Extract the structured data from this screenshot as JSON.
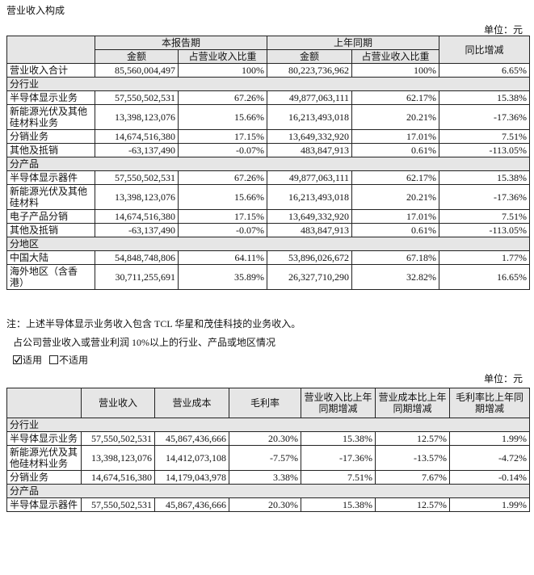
{
  "title": "营业收入构成",
  "unit1": "单位：元",
  "table1": {
    "header1": [
      "本报告期",
      "上年同期",
      "同比增减"
    ],
    "header2": [
      "金额",
      "占营业收入比重",
      "金额",
      "占营业收入比重"
    ],
    "rows": [
      [
        "营业收入合计",
        "85,560,004,497",
        "100%",
        "80,223,736,962",
        "100%",
        "6.65%"
      ],
      "分行业",
      [
        "半导体显示业务",
        "57,550,502,531",
        "67.26%",
        "49,877,063,111",
        "62.17%",
        "15.38%"
      ],
      [
        "新能源光伏及其他硅材料业务",
        "13,398,123,076",
        "15.66%",
        "16,213,493,018",
        "20.21%",
        "-17.36%"
      ],
      [
        "分销业务",
        "14,674,516,380",
        "17.15%",
        "13,649,332,920",
        "17.01%",
        "7.51%"
      ],
      [
        "其他及抵销",
        "-63,137,490",
        "-0.07%",
        "483,847,913",
        "0.61%",
        "-113.05%"
      ],
      "分产品",
      [
        "半导体显示器件",
        "57,550,502,531",
        "67.26%",
        "49,877,063,111",
        "62.17%",
        "15.38%"
      ],
      [
        "新能源光伏及其他硅材料",
        "13,398,123,076",
        "15.66%",
        "16,213,493,018",
        "20.21%",
        "-17.36%"
      ],
      [
        "电子产品分销",
        "14,674,516,380",
        "17.15%",
        "13,649,332,920",
        "17.01%",
        "7.51%"
      ],
      [
        "其他及抵销",
        "-63,137,490",
        "-0.07%",
        "483,847,913",
        "0.61%",
        "-113.05%"
      ],
      "分地区",
      [
        "中国大陆",
        "54,848,748,806",
        "64.11%",
        "53,896,026,672",
        "67.18%",
        "1.77%"
      ],
      [
        "海外地区（含香港）",
        "30,711,255,691",
        "35.89%",
        "26,327,710,290",
        "32.82%",
        "16.65%"
      ]
    ]
  },
  "note": "注：上述半导体显示业务收入包含 TCL 华星和茂佳科技的业务收入。",
  "paragraph": "占公司营业收入或营业利润 10%以上的行业、产品或地区情况",
  "options": [
    "适用",
    "不适用"
  ],
  "unit2": "单位：元",
  "table2": {
    "header": [
      "营业收入",
      "营业成本",
      "毛利率",
      "营业收入比上年同期增减",
      "营业成本比上年同期增减",
      "毛利率比上年同期增减"
    ],
    "rows": [
      "分行业",
      [
        "半导体显示业务",
        "57,550,502,531",
        "45,867,436,666",
        "20.30%",
        "15.38%",
        "12.57%",
        "1.99%"
      ],
      [
        "新能源光伏及其他硅材料业务",
        "13,398,123,076",
        "14,412,073,108",
        "-7.57%",
        "-17.36%",
        "-13.57%",
        "-4.72%"
      ],
      [
        "分销业务",
        "14,674,516,380",
        "14,179,043,978",
        "3.38%",
        "7.51%",
        "7.67%",
        "-0.14%"
      ],
      "分产品",
      [
        "半导体显示器件",
        "57,550,502,531",
        "45,867,436,666",
        "20.30%",
        "15.38%",
        "12.57%",
        "1.99%"
      ]
    ]
  }
}
